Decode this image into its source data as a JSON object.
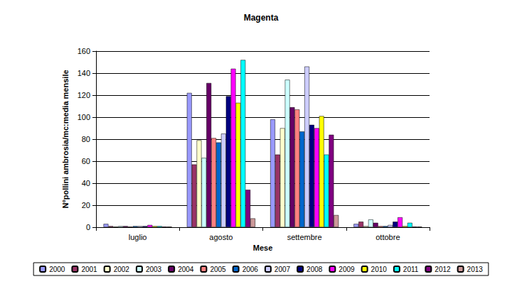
{
  "chart_data": {
    "type": "bar",
    "title": "Magenta",
    "x_label": "Mese",
    "y_label": "N°pollini ambrosia/mc:media mensile",
    "categories": [
      "luglio",
      "agosto",
      "settembre",
      "ottobre"
    ],
    "series": [
      {
        "name": "2000",
        "color": "#9999FF",
        "values": [
          3,
          122,
          98,
          3
        ]
      },
      {
        "name": "2001",
        "color": "#993366",
        "values": [
          1,
          57,
          66,
          5
        ]
      },
      {
        "name": "2002",
        "color": "#FFFFCC",
        "values": [
          0.5,
          79,
          90,
          1
        ]
      },
      {
        "name": "2003",
        "color": "#CCFFFF",
        "values": [
          1,
          63,
          134,
          7
        ]
      },
      {
        "name": "2004",
        "color": "#660066",
        "values": [
          1,
          131,
          109,
          4
        ]
      },
      {
        "name": "2005",
        "color": "#FF8080",
        "values": [
          0.5,
          81,
          107,
          1
        ]
      },
      {
        "name": "2006",
        "color": "#0066CC",
        "values": [
          1,
          77,
          87,
          1
        ]
      },
      {
        "name": "2007",
        "color": "#CCCCFF",
        "values": [
          1,
          85,
          146,
          2
        ]
      },
      {
        "name": "2008",
        "color": "#000080",
        "values": [
          1,
          119,
          93,
          5
        ]
      },
      {
        "name": "2009",
        "color": "#FF00FF",
        "values": [
          2,
          144,
          90,
          9
        ]
      },
      {
        "name": "2010",
        "color": "#FFFF00",
        "values": [
          1,
          113,
          101,
          1
        ]
      },
      {
        "name": "2011",
        "color": "#00FFFF",
        "values": [
          1,
          152,
          66,
          4
        ]
      },
      {
        "name": "2012",
        "color": "#800080",
        "values": [
          0.5,
          34,
          84,
          0.5
        ]
      },
      {
        "name": "2013",
        "color": "#CC9999",
        "values": [
          0.5,
          8,
          11,
          0.5
        ]
      }
    ],
    "ylim": [
      0,
      160
    ],
    "yticks": [
      0,
      20,
      40,
      60,
      80,
      100,
      120,
      140,
      160
    ],
    "grid": true,
    "legend": "bottom"
  }
}
